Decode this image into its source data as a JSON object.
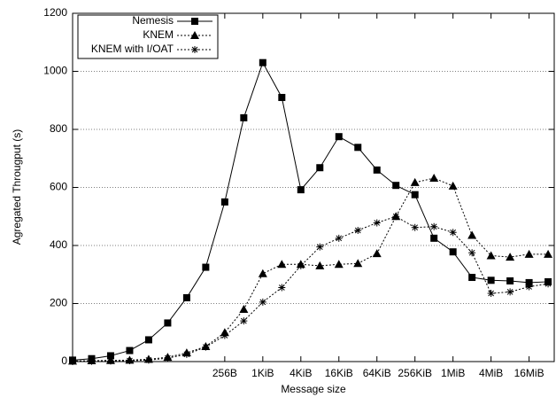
{
  "chart_data": {
    "type": "line",
    "xlabel": "Message size",
    "ylabel": "Agregated Througput (s)",
    "xscale": "log2",
    "grid": true,
    "legend": "top-left",
    "x": [
      1,
      2,
      4,
      8,
      16,
      32,
      64,
      128,
      256,
      512,
      1024,
      2048,
      4096,
      8192,
      16384,
      32768,
      65536,
      131072,
      262144,
      524288,
      1048576,
      2097152,
      4194304,
      8388608,
      16777216,
      33554432
    ],
    "xlim": [
      1,
      41943040
    ],
    "xticks": [
      {
        "value": 256,
        "label": "256B"
      },
      {
        "value": 1024,
        "label": "1KiB"
      },
      {
        "value": 4096,
        "label": "4KiB"
      },
      {
        "value": 16384,
        "label": "16KiB"
      },
      {
        "value": 65536,
        "label": "64KiB"
      },
      {
        "value": 262144,
        "label": "256KiB"
      },
      {
        "value": 1048576,
        "label": "1MiB"
      },
      {
        "value": 4194304,
        "label": "4MiB"
      },
      {
        "value": 16777216,
        "label": "16MiB"
      }
    ],
    "ylim": [
      0,
      1200
    ],
    "yticks": [
      0,
      200,
      400,
      600,
      800,
      1000,
      1200
    ],
    "series": [
      {
        "name": "Nemesis",
        "color": "#000000",
        "linestyle": "solid",
        "marker": "square",
        "values": [
          5,
          10,
          20,
          38,
          75,
          133,
          220,
          325,
          550,
          840,
          1030,
          910,
          592,
          668,
          775,
          738,
          660,
          607,
          575,
          425,
          378,
          290,
          280,
          278,
          272,
          275
        ]
      },
      {
        "name": "KNEM",
        "color": "#000000",
        "linestyle": "dotted",
        "marker": "triangle",
        "values": [
          2,
          3,
          4,
          5,
          8,
          15,
          30,
          52,
          100,
          180,
          303,
          335,
          335,
          330,
          335,
          338,
          372,
          500,
          617,
          632,
          605,
          435,
          365,
          360,
          370,
          370
        ]
      },
      {
        "name": "KNEM with I/OAT",
        "color": "#000000",
        "linestyle": "dotted",
        "marker": "star",
        "values": [
          0,
          1,
          2,
          3,
          5,
          12,
          25,
          50,
          90,
          140,
          205,
          255,
          330,
          395,
          425,
          452,
          478,
          500,
          462,
          465,
          445,
          375,
          235,
          240,
          258,
          268
        ]
      }
    ]
  }
}
